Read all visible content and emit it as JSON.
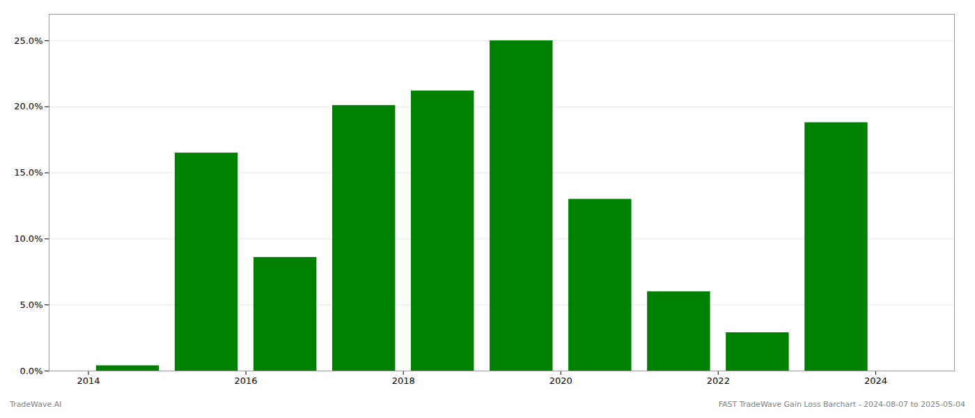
{
  "chart_data": {
    "type": "bar",
    "x": [
      2014.5,
      2015.5,
      2016.5,
      2017.5,
      2018.5,
      2019.5,
      2020.5,
      2021.5,
      2022.5,
      2023.5
    ],
    "values": [
      0.004,
      0.165,
      0.086,
      0.201,
      0.212,
      0.25,
      0.13,
      0.06,
      0.029,
      0.188
    ],
    "color": "#008000",
    "xlim": [
      2013.5,
      2025.0
    ],
    "xticks": [
      2014,
      2016,
      2018,
      2020,
      2022,
      2024
    ],
    "ylim": [
      0.0,
      0.27
    ],
    "yticks": [
      {
        "value": 0.0,
        "label": "0.0%"
      },
      {
        "value": 0.05,
        "label": "5.0%"
      },
      {
        "value": 0.1,
        "label": "10.0%"
      },
      {
        "value": 0.15,
        "label": "15.0%"
      },
      {
        "value": 0.2,
        "label": "20.0%"
      },
      {
        "value": 0.25,
        "label": "25.0%"
      }
    ],
    "grid": true,
    "annotations": [
      "TradeWave.AI",
      "FAST TradeWave Gain Loss Barchart - 2024-08-07 to 2025-05-04"
    ]
  }
}
